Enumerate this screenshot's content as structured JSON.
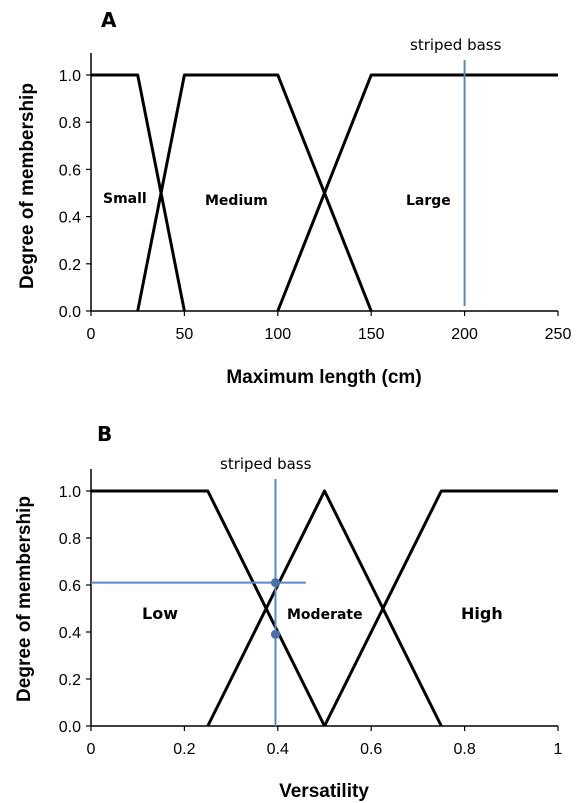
{
  "chart_data": [
    {
      "type": "line",
      "panel_label": "A",
      "xlabel": "Maximum length (cm)",
      "ylabel": "Degree of membership",
      "xlim": [
        0,
        250
      ],
      "ylim": [
        0,
        1
      ],
      "x_ticks": [
        "0",
        "50",
        "100",
        "150",
        "200",
        "250"
      ],
      "y_ticks": [
        "0.0",
        "0.2",
        "0.4",
        "0.6",
        "0.8",
        "1.0"
      ],
      "series": [
        {
          "name": "Small",
          "x": [
            0,
            25,
            50
          ],
          "y": [
            1,
            1,
            0
          ]
        },
        {
          "name": "Medium",
          "x": [
            25,
            50,
            100,
            150
          ],
          "y": [
            0,
            1,
            1,
            0
          ]
        },
        {
          "name": "Large",
          "x": [
            100,
            150,
            250
          ],
          "y": [
            0,
            1,
            1
          ]
        }
      ],
      "region_labels": [
        "Small",
        "Medium",
        "Large"
      ],
      "annotation": {
        "text": "striped bass",
        "x": 200
      }
    },
    {
      "type": "line",
      "panel_label": "B",
      "xlabel": "Versatility",
      "ylabel": "Degree of membership",
      "xlim": [
        0,
        1
      ],
      "ylim": [
        0,
        1
      ],
      "x_ticks": [
        "0",
        "0.2",
        "0.4",
        "0.6",
        "0.8",
        "1"
      ],
      "y_ticks": [
        "0.0",
        "0.2",
        "0.4",
        "0.6",
        "0.8",
        "1.0"
      ],
      "series": [
        {
          "name": "Low",
          "x": [
            0,
            0.25,
            0.5
          ],
          "y": [
            1,
            1,
            0
          ]
        },
        {
          "name": "Moderate",
          "x": [
            0.25,
            0.5,
            0.75
          ],
          "y": [
            0,
            1,
            0
          ]
        },
        {
          "name": "High",
          "x": [
            0.5,
            0.75,
            1
          ],
          "y": [
            0,
            1,
            1
          ]
        }
      ],
      "region_labels": [
        "Low",
        "Moderate",
        "High"
      ],
      "annotation": {
        "text": "striped bass",
        "x": 0.395,
        "memberships": [
          0.61,
          0.39
        ],
        "guide_y": 0.61
      }
    }
  ]
}
